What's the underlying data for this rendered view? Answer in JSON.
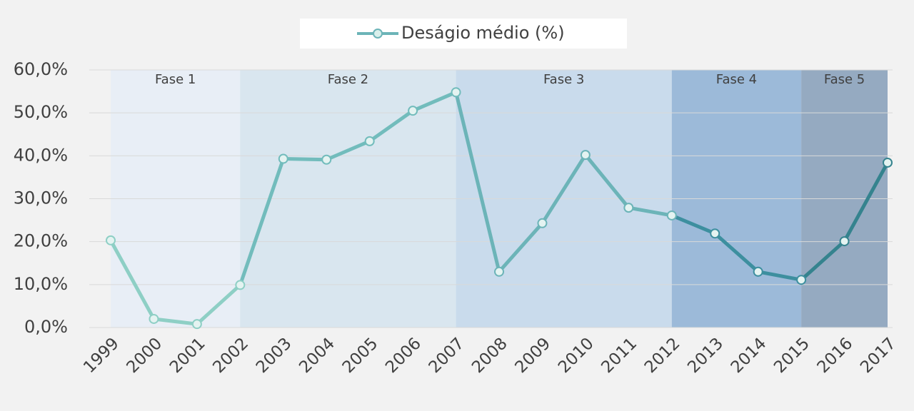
{
  "chart_data": {
    "type": "line",
    "legend": "Deságio médio (%)",
    "categories": [
      "1999",
      "2000",
      "2001",
      "2002",
      "2003",
      "2004",
      "2005",
      "2006",
      "2007",
      "2008",
      "2009",
      "2010",
      "2011",
      "2012",
      "2013",
      "2014",
      "2015",
      "2016",
      "2017"
    ],
    "values": [
      20.3,
      2.0,
      0.8,
      9.9,
      39.3,
      39.1,
      43.4,
      50.5,
      54.8,
      13.0,
      24.3,
      40.2,
      27.9,
      26.1,
      21.9,
      13.0,
      11.1,
      20.1,
      38.4
    ],
    "ylim": [
      0,
      60
    ],
    "yticks": [
      {
        "value": 0,
        "label": "0,0%"
      },
      {
        "value": 10,
        "label": "10,0%"
      },
      {
        "value": 20,
        "label": "20,0%"
      },
      {
        "value": 30,
        "label": "30,0%"
      },
      {
        "value": 40,
        "label": "40,0%"
      },
      {
        "value": 50,
        "label": "50,0%"
      },
      {
        "value": 60,
        "label": "60,0%"
      }
    ],
    "grid": true,
    "phases": [
      {
        "label": "Fase 1",
        "start": "1999",
        "end": "2002",
        "color": "#e8eef6",
        "line_color": "#8ecfc5"
      },
      {
        "label": "Fase 2",
        "start": "2002",
        "end": "2007",
        "color": "#d9e6ef",
        "line_color": "#72bcbc"
      },
      {
        "label": "Fase 3",
        "start": "2007",
        "end": "2012",
        "color": "#c9dbec",
        "line_color": "#6cb4b8"
      },
      {
        "label": "Fase 4",
        "start": "2012",
        "end": "2015",
        "color": "#9cbad9",
        "line_color": "#3d8f9f"
      },
      {
        "label": "Fase 5",
        "start": "2015",
        "end": "2017",
        "color": "#95aac1",
        "line_color": "#35838e"
      }
    ]
  }
}
